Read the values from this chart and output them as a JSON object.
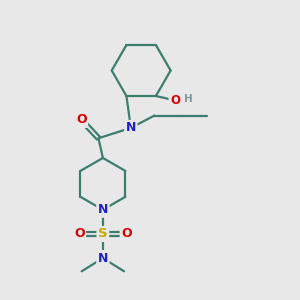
{
  "bg_color": "#e8e8e8",
  "atom_colors": {
    "C": "#3d7d6e",
    "N": "#2020cc",
    "O": "#dd0000",
    "S": "#c8a800",
    "H": "#7a9a9a"
  },
  "bond_color": "#3d7d6e",
  "bond_width": 1.6,
  "fig_size": [
    3.0,
    3.0
  ],
  "dpi": 100
}
